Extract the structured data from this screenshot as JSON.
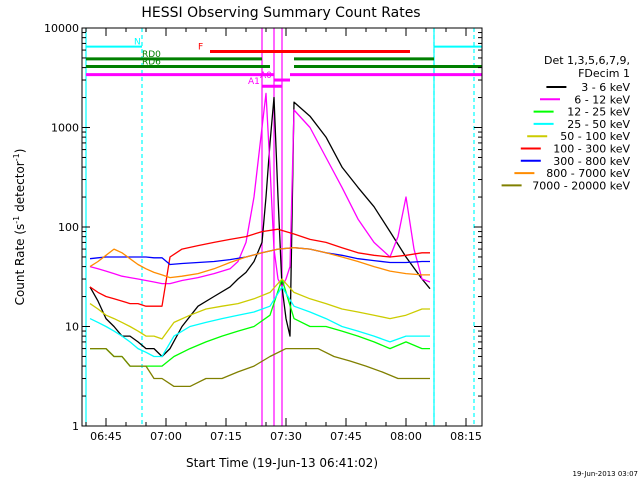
{
  "chart_data": {
    "type": "line",
    "title": "HESSI Observing Summary Count Rates",
    "xlabel": "Start Time (19-Jun-13 06:41:02)",
    "ylabel": "Count Rate (s⁻¹ detector⁻¹)",
    "ylabel_main": "Count Rate (s",
    "ylabel_sup1": "-1",
    "ylabel_mid": " detector",
    "ylabel_sup2": "-1",
    "ylabel_end": ")",
    "y_scale": "log",
    "ylim": [
      1,
      10000
    ],
    "xlim": [
      "06:39",
      "08:19"
    ],
    "x_ticks": [
      "06:45",
      "07:00",
      "07:15",
      "07:30",
      "07:45",
      "08:00",
      "08:15"
    ],
    "y_ticks": [
      "1",
      "10",
      "100",
      "1000",
      "10000"
    ],
    "legend_header": [
      "Det 1,3,5,6,7,9,",
      "FDecim 1"
    ],
    "legend_placement": "right",
    "footer_date": "19-Jun-2013 03:07",
    "series": [
      {
        "name": "3 - 6 keV",
        "color": "#000000",
        "x": [
          "06:41",
          "06:43",
          "06:45",
          "06:47",
          "06:49",
          "06:51",
          "06:53",
          "06:55",
          "06:57",
          "06:59",
          "07:01",
          "07:04",
          "07:08",
          "07:12",
          "07:16",
          "07:18",
          "07:20",
          "07:22",
          "07:24",
          "07:25",
          "07:26",
          "07:27",
          "07:28",
          "07:29",
          "07:30",
          "07:31",
          "07:32",
          "07:36",
          "07:40",
          "07:44",
          "07:48",
          "07:52",
          "07:56",
          "08:00",
          "08:04",
          "08:06"
        ],
        "y": [
          25,
          18,
          12,
          10,
          8,
          8,
          7,
          6,
          6,
          5,
          6,
          10,
          16,
          20,
          25,
          30,
          35,
          45,
          70,
          200,
          700,
          2000,
          200,
          25,
          12,
          8,
          1800,
          1300,
          800,
          400,
          250,
          160,
          90,
          50,
          30,
          24
        ]
      },
      {
        "name": "6 - 12 keV",
        "color": "#ff00ff",
        "x": [
          "06:41",
          "06:43",
          "06:45",
          "06:47",
          "06:49",
          "06:51",
          "06:53",
          "06:55",
          "06:57",
          "06:59",
          "07:01",
          "07:04",
          "07:08",
          "07:12",
          "07:16",
          "07:18",
          "07:20",
          "07:22",
          "07:24",
          "07:25",
          "07:26",
          "07:27",
          "07:28",
          "07:29",
          "07:30",
          "07:31",
          "07:32",
          "07:36",
          "07:40",
          "07:44",
          "07:48",
          "07:52",
          "07:56",
          "07:58",
          "08:00",
          "08:02",
          "08:04",
          "08:06"
        ],
        "y": [
          40,
          38,
          36,
          34,
          32,
          31,
          30,
          29,
          28,
          27,
          27,
          29,
          31,
          34,
          38,
          45,
          70,
          200,
          1000,
          2200,
          400,
          60,
          30,
          25,
          30,
          40,
          1500,
          1000,
          500,
          250,
          120,
          70,
          50,
          80,
          200,
          60,
          30,
          28
        ]
      },
      {
        "name": "12 - 25 keV",
        "color": "#00ff00",
        "x": [
          "06:41",
          "06:43",
          "06:45",
          "06:47",
          "06:49",
          "06:51",
          "06:53",
          "06:55",
          "06:57",
          "06:59",
          "07:02",
          "07:06",
          "07:10",
          "07:14",
          "07:18",
          "07:22",
          "07:26",
          "07:29",
          "07:32",
          "07:36",
          "07:40",
          "07:44",
          "07:48",
          "07:52",
          "07:56",
          "08:00",
          "08:04",
          "08:06"
        ],
        "y": [
          6,
          6,
          6,
          5,
          5,
          4,
          4,
          4,
          4,
          4,
          5,
          6,
          7,
          8,
          9,
          10,
          13,
          30,
          12,
          10,
          10,
          9,
          8,
          7,
          6,
          7,
          6,
          6
        ]
      },
      {
        "name": "25 - 50 keV",
        "color": "#00ffff",
        "x": [
          "06:41",
          "06:43",
          "06:45",
          "06:47",
          "06:49",
          "06:51",
          "06:53",
          "06:55",
          "06:57",
          "06:59",
          "07:02",
          "07:06",
          "07:10",
          "07:14",
          "07:18",
          "07:22",
          "07:26",
          "07:29",
          "07:32",
          "07:36",
          "07:40",
          "07:44",
          "07:48",
          "07:52",
          "07:56",
          "08:00",
          "08:04",
          "08:06"
        ],
        "y": [
          12,
          11,
          10,
          9,
          8,
          7,
          6,
          5.5,
          5,
          5,
          8,
          10,
          11,
          12,
          13,
          14,
          16,
          25,
          16,
          14,
          12,
          10,
          9,
          8,
          7,
          8,
          8,
          8
        ]
      },
      {
        "name": "50 - 100 keV",
        "color": "#cccc00",
        "x": [
          "06:41",
          "06:43",
          "06:45",
          "06:47",
          "06:49",
          "06:51",
          "06:53",
          "06:55",
          "06:57",
          "06:59",
          "07:02",
          "07:06",
          "07:10",
          "07:14",
          "07:18",
          "07:22",
          "07:26",
          "07:29",
          "07:32",
          "07:36",
          "07:40",
          "07:44",
          "07:48",
          "07:52",
          "07:56",
          "08:00",
          "08:04",
          "08:06"
        ],
        "y": [
          17,
          15,
          13,
          12,
          11,
          10,
          9,
          8,
          8,
          7.5,
          11,
          13,
          15,
          16,
          17,
          19,
          22,
          30,
          22,
          19,
          17,
          15,
          14,
          13,
          12,
          13,
          15,
          15
        ]
      },
      {
        "name": "100 - 300 keV",
        "color": "#ff0000",
        "x": [
          "06:41",
          "06:43",
          "06:45",
          "06:47",
          "06:49",
          "06:51",
          "06:53",
          "06:55",
          "06:57",
          "06:59",
          "07:01",
          "07:04",
          "07:08",
          "07:12",
          "07:16",
          "07:20",
          "07:24",
          "07:28",
          "07:32",
          "07:36",
          "07:40",
          "07:44",
          "07:48",
          "07:52",
          "07:56",
          "08:00",
          "08:04",
          "08:06"
        ],
        "y": [
          25,
          22,
          20,
          19,
          18,
          17,
          17,
          16,
          16,
          16,
          50,
          60,
          65,
          70,
          75,
          80,
          90,
          95,
          85,
          75,
          70,
          62,
          55,
          52,
          50,
          52,
          55,
          55
        ]
      },
      {
        "name": "300 - 800 keV",
        "color": "#0000ff",
        "x": [
          "06:41",
          "06:43",
          "06:45",
          "06:47",
          "06:49",
          "06:51",
          "06:53",
          "06:55",
          "06:57",
          "06:59",
          "07:01",
          "07:04",
          "07:08",
          "07:12",
          "07:16",
          "07:20",
          "07:24",
          "07:28",
          "07:32",
          "07:36",
          "07:40",
          "07:44",
          "07:48",
          "07:52",
          "07:56",
          "08:00",
          "08:04",
          "08:06"
        ],
        "y": [
          48,
          49,
          50,
          50,
          50,
          50,
          50,
          50,
          49,
          49,
          42,
          43,
          44,
          45,
          47,
          50,
          55,
          60,
          62,
          60,
          55,
          52,
          48,
          46,
          44,
          44,
          45,
          45
        ]
      },
      {
        "name": "800 - 7000 keV",
        "color": "#ff8c00",
        "x": [
          "06:41",
          "06:43",
          "06:45",
          "06:47",
          "06:49",
          "06:51",
          "06:53",
          "06:55",
          "06:57",
          "06:59",
          "07:01",
          "07:04",
          "07:08",
          "07:12",
          "07:16",
          "07:20",
          "07:24",
          "07:28",
          "07:32",
          "07:36",
          "07:40",
          "07:44",
          "07:48",
          "07:52",
          "07:56",
          "08:00",
          "08:04",
          "08:06"
        ],
        "y": [
          40,
          45,
          52,
          60,
          55,
          48,
          42,
          38,
          35,
          33,
          31,
          32,
          34,
          38,
          44,
          50,
          55,
          60,
          62,
          60,
          55,
          50,
          45,
          40,
          36,
          34,
          33,
          33
        ]
      },
      {
        "name": "7000 - 20000 keV",
        "color": "#808000",
        "x": [
          "06:41",
          "06:43",
          "06:45",
          "06:47",
          "06:49",
          "06:51",
          "06:53",
          "06:55",
          "06:57",
          "06:59",
          "07:02",
          "07:06",
          "07:10",
          "07:14",
          "07:18",
          "07:22",
          "07:26",
          "07:30",
          "07:34",
          "07:38",
          "07:42",
          "07:46",
          "07:50",
          "07:54",
          "07:58",
          "08:02",
          "08:06"
        ],
        "y": [
          6,
          6,
          6,
          5,
          5,
          4,
          4,
          4,
          3,
          3,
          2.5,
          2.5,
          3,
          3,
          3.5,
          4,
          5,
          6,
          6,
          6,
          5,
          4.5,
          4,
          3.5,
          3,
          3,
          3
        ]
      }
    ],
    "annotations": [
      {
        "label": "N",
        "color": "#00ffff",
        "x0": "06:40",
        "x1": "06:54",
        "y": 6500,
        "style": "line"
      },
      {
        "label": "",
        "color": "#00ffff",
        "x0": "08:07",
        "x1": "08:19",
        "y": 6500,
        "style": "line"
      },
      {
        "label": "F",
        "color": "#ff0000",
        "x0": "07:11",
        "x1": "08:01",
        "y": 5800,
        "style": "thick"
      },
      {
        "label": "RD0",
        "color": "#008000",
        "x0": "06:40",
        "x1": "07:24",
        "y": 4900,
        "style": "thick"
      },
      {
        "label": "",
        "color": "#008000",
        "x0": "07:32",
        "x1": "08:07",
        "y": 4900,
        "style": "thick"
      },
      {
        "label": "RD6",
        "color": "#008000",
        "x0": "06:40",
        "x1": "07:26",
        "y": 4100,
        "style": "thick"
      },
      {
        "label": "",
        "color": "#008000",
        "x0": "07:32",
        "x1": "08:19",
        "y": 4100,
        "style": "thick"
      },
      {
        "label": "",
        "color": "#ff00ff",
        "x0": "06:40",
        "x1": "07:27",
        "y": 3400,
        "style": "thick"
      },
      {
        "label": "",
        "color": "#ff00ff",
        "x0": "07:31",
        "x1": "08:19",
        "y": 3400,
        "style": "thick"
      },
      {
        "label": "A0",
        "color": "#ff00ff",
        "x0": "07:27",
        "x1": "07:31",
        "y": 3000,
        "style": "thick"
      },
      {
        "label": "A1",
        "color": "#ff00ff",
        "x0": "07:24",
        "x1": "07:29",
        "y": 2600,
        "style": "thick"
      }
    ],
    "vertical_markers": [
      {
        "x": "06:54",
        "color": "#00ffff",
        "style": "dashed"
      },
      {
        "x": "08:07",
        "color": "#00ffff",
        "style": "dashed"
      },
      {
        "x": "08:07",
        "color": "#00ffff",
        "style": "solid"
      },
      {
        "x": "08:17",
        "color": "#00ffff",
        "style": "dashed"
      },
      {
        "x": "06:40",
        "color": "#00ffff",
        "style": "solid"
      },
      {
        "x": "07:24",
        "color": "#ff00ff",
        "style": "solid"
      },
      {
        "x": "07:29",
        "color": "#ff00ff",
        "style": "solid"
      },
      {
        "x": "07:27",
        "color": "#ff00ff",
        "style": "solid"
      }
    ]
  }
}
